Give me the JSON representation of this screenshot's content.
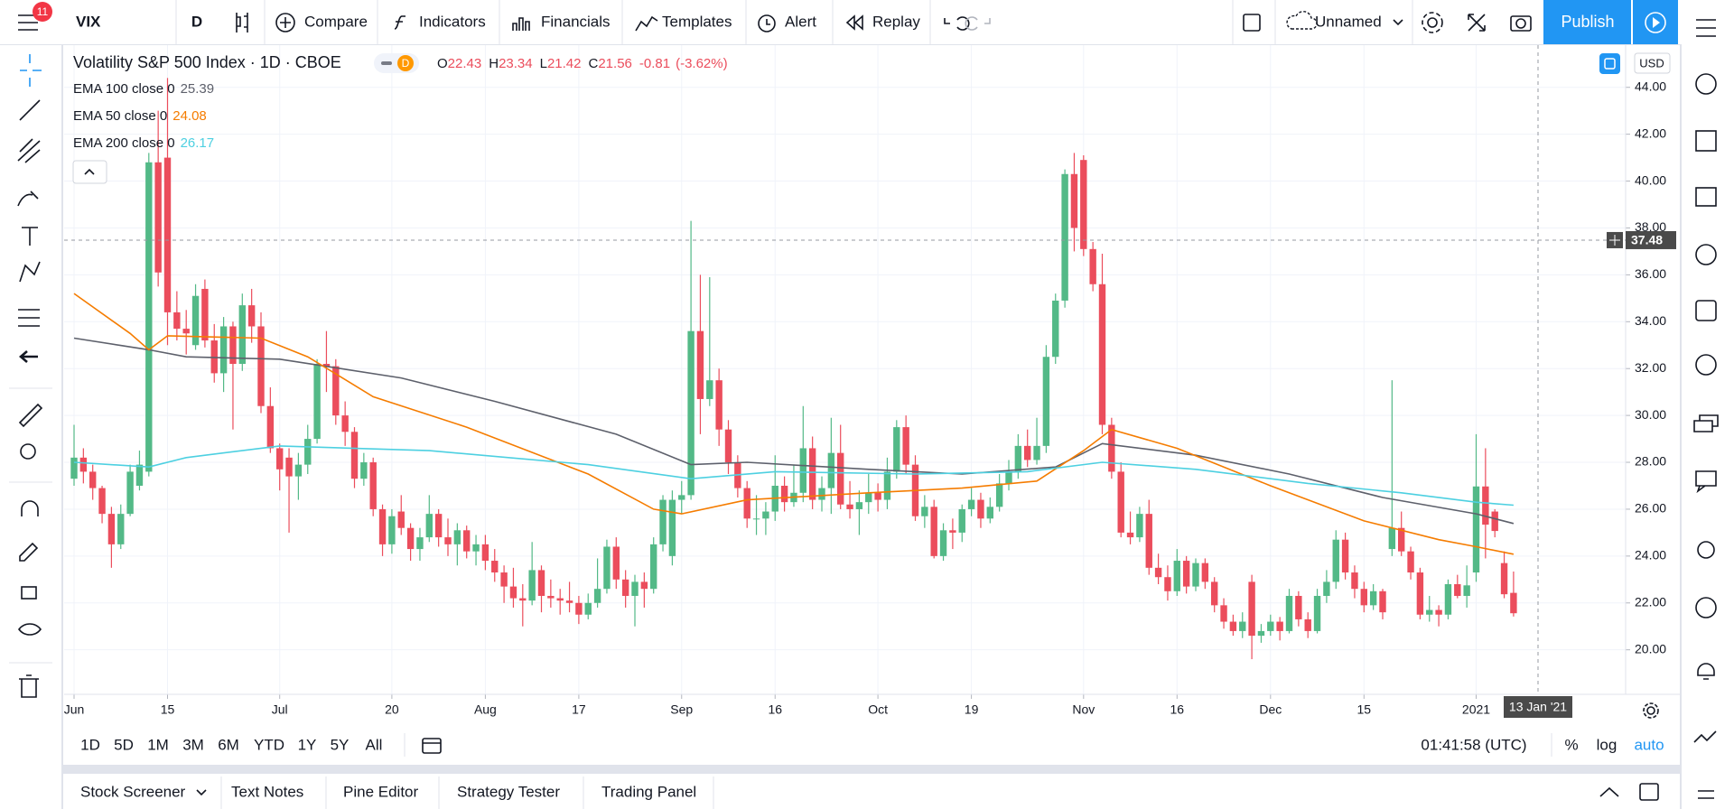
{
  "toolbar": {
    "badge": 11,
    "symbol": "VIX",
    "interval": "D",
    "items": [
      "Compare",
      "Indicators",
      "Financials",
      "Templates",
      "Alert",
      "Replay"
    ],
    "layout_name": "Unnamed",
    "publish": "Publish"
  },
  "legend": {
    "title": "Volatility S&P 500 Index · 1D · CBOE",
    "badge": "D",
    "ohlc": [
      {
        "key": "O",
        "value": 22.43
      },
      {
        "key": "H",
        "value": 23.34
      },
      {
        "key": "L",
        "value": 21.42
      },
      {
        "key": "C",
        "value": 21.56
      }
    ],
    "change": -0.81,
    "change_pct": {
      "value": -3.62,
      "label": "(-3.62%)"
    }
  },
  "chart_data": {
    "type": "candlestick",
    "up_color": "#53b987",
    "down_color": "#eb4d5c",
    "grid": true,
    "candles": [
      [
        27.3,
        29.6,
        27.0,
        28.2
      ],
      [
        28.2,
        28.6,
        27.1,
        27.6
      ],
      [
        27.6,
        27.9,
        26.4,
        26.9
      ],
      [
        26.9,
        27.0,
        25.4,
        25.8
      ],
      [
        25.8,
        26.1,
        23.5,
        24.5
      ],
      [
        24.5,
        26.2,
        24.3,
        25.8
      ],
      [
        25.8,
        27.9,
        25.7,
        27.6
      ],
      [
        27.0,
        28.5,
        26.8,
        27.9
      ],
      [
        27.6,
        41.2,
        27.4,
        40.8
      ],
      [
        40.8,
        43.0,
        35.5,
        36.1
      ],
      [
        41.0,
        44.4,
        33.0,
        34.4
      ],
      [
        34.4,
        35.3,
        33.2,
        33.7
      ],
      [
        33.7,
        34.5,
        32.6,
        33.5
      ],
      [
        33.0,
        35.6,
        32.8,
        35.1
      ],
      [
        35.4,
        35.8,
        32.9,
        33.2
      ],
      [
        33.2,
        33.9,
        31.4,
        31.8
      ],
      [
        31.8,
        34.2,
        31.0,
        33.8
      ],
      [
        33.8,
        34.0,
        29.4,
        32.2
      ],
      [
        32.2,
        35.2,
        31.9,
        34.7
      ],
      [
        34.7,
        35.4,
        33.1,
        33.8
      ],
      [
        33.8,
        34.4,
        30.1,
        30.4
      ],
      [
        30.4,
        31.2,
        28.4,
        28.6
      ],
      [
        28.6,
        28.8,
        26.8,
        27.7
      ],
      [
        28.2,
        28.6,
        25.0,
        27.4
      ],
      [
        27.4,
        28.4,
        26.4,
        27.9
      ],
      [
        27.9,
        29.6,
        27.5,
        29.0
      ],
      [
        29.0,
        32.4,
        28.8,
        32.2
      ],
      [
        32.2,
        33.6,
        31.0,
        32.1
      ],
      [
        32.1,
        32.4,
        29.6,
        30.0
      ],
      [
        30.0,
        30.6,
        28.7,
        29.3
      ],
      [
        29.3,
        29.5,
        26.9,
        27.3
      ],
      [
        27.3,
        28.4,
        27.0,
        28.0
      ],
      [
        28.0,
        28.2,
        25.7,
        26.0
      ],
      [
        26.0,
        26.2,
        24.0,
        24.5
      ],
      [
        24.5,
        26.0,
        24.1,
        25.7
      ],
      [
        25.9,
        26.6,
        24.9,
        25.2
      ],
      [
        25.2,
        25.4,
        23.8,
        24.3
      ],
      [
        24.3,
        25.2,
        23.8,
        24.8
      ],
      [
        24.8,
        26.6,
        24.6,
        25.8
      ],
      [
        25.8,
        26.0,
        24.4,
        24.8
      ],
      [
        24.8,
        25.6,
        24.0,
        24.5
      ],
      [
        24.5,
        25.4,
        23.6,
        25.1
      ],
      [
        25.1,
        25.3,
        23.9,
        24.2
      ],
      [
        24.2,
        24.9,
        23.6,
        24.5
      ],
      [
        24.5,
        24.9,
        23.4,
        23.8
      ],
      [
        23.8,
        24.3,
        22.9,
        23.3
      ],
      [
        23.3,
        23.6,
        22.0,
        22.7
      ],
      [
        22.7,
        23.5,
        21.8,
        22.2
      ],
      [
        22.2,
        22.8,
        21.0,
        22.1
      ],
      [
        22.1,
        24.6,
        21.9,
        23.4
      ],
      [
        23.4,
        23.6,
        21.6,
        22.3
      ],
      [
        22.3,
        23.0,
        21.8,
        22.2
      ],
      [
        22.2,
        22.6,
        21.5,
        22.1
      ],
      [
        22.1,
        22.9,
        21.6,
        22.0
      ],
      [
        22.0,
        22.3,
        21.1,
        21.5
      ],
      [
        21.5,
        22.4,
        21.3,
        22.0
      ],
      [
        22.0,
        23.9,
        21.8,
        22.6
      ],
      [
        22.6,
        24.7,
        22.4,
        24.4
      ],
      [
        24.4,
        24.8,
        22.6,
        23.0
      ],
      [
        23.0,
        23.4,
        21.8,
        22.3
      ],
      [
        22.3,
        23.2,
        21.0,
        22.9
      ],
      [
        22.9,
        23.3,
        21.8,
        22.6
      ],
      [
        22.6,
        24.8,
        22.4,
        24.5
      ],
      [
        24.5,
        26.6,
        24.2,
        26.4
      ],
      [
        24.0,
        26.8,
        23.6,
        26.4
      ],
      [
        26.4,
        27.2,
        25.8,
        26.6
      ],
      [
        26.6,
        38.3,
        26.4,
        33.6
      ],
      [
        33.6,
        36.0,
        29.2,
        30.7
      ],
      [
        30.7,
        35.9,
        30.4,
        31.5
      ],
      [
        31.5,
        32.0,
        28.7,
        29.4
      ],
      [
        29.4,
        29.8,
        27.5,
        28.0
      ],
      [
        28.0,
        28.3,
        26.5,
        26.9
      ],
      [
        26.9,
        27.2,
        25.2,
        25.6
      ],
      [
        25.6,
        26.6,
        24.9,
        25.6
      ],
      [
        25.6,
        26.3,
        24.9,
        25.9
      ],
      [
        25.9,
        28.3,
        25.5,
        27.0
      ],
      [
        27.0,
        27.4,
        25.9,
        26.3
      ],
      [
        26.3,
        27.9,
        26.1,
        26.7
      ],
      [
        26.7,
        30.4,
        26.3,
        28.6
      ],
      [
        28.6,
        29.1,
        26.0,
        26.4
      ],
      [
        26.4,
        27.4,
        25.9,
        26.9
      ],
      [
        26.9,
        29.9,
        25.8,
        28.4
      ],
      [
        28.4,
        29.6,
        26.0,
        26.2
      ],
      [
        26.2,
        27.2,
        25.6,
        26.0
      ],
      [
        26.0,
        26.8,
        24.9,
        26.3
      ],
      [
        26.3,
        27.5,
        25.8,
        26.7
      ],
      [
        26.7,
        27.1,
        25.9,
        26.4
      ],
      [
        26.4,
        28.2,
        26.0,
        27.6
      ],
      [
        27.6,
        29.8,
        27.3,
        29.5
      ],
      [
        29.5,
        30.0,
        27.5,
        27.9
      ],
      [
        27.9,
        28.3,
        25.5,
        25.7
      ],
      [
        25.7,
        26.6,
        25.2,
        26.1
      ],
      [
        26.1,
        26.4,
        23.9,
        24.0
      ],
      [
        24.0,
        25.4,
        23.8,
        25.1
      ],
      [
        25.1,
        25.6,
        24.3,
        25.0
      ],
      [
        25.0,
        26.2,
        24.6,
        26.0
      ],
      [
        26.0,
        26.9,
        25.7,
        26.4
      ],
      [
        26.4,
        26.7,
        25.2,
        25.6
      ],
      [
        25.6,
        26.5,
        25.4,
        26.1
      ],
      [
        26.1,
        27.5,
        25.9,
        27.1
      ],
      [
        27.1,
        28.1,
        26.8,
        27.6
      ],
      [
        27.6,
        29.2,
        27.3,
        28.7
      ],
      [
        28.7,
        29.4,
        27.8,
        28.1
      ],
      [
        28.1,
        29.9,
        27.9,
        28.7
      ],
      [
        28.7,
        33.0,
        28.4,
        32.5
      ],
      [
        32.5,
        35.2,
        32.2,
        34.9
      ],
      [
        34.9,
        40.5,
        34.6,
        40.3
      ],
      [
        40.3,
        41.2,
        37.0,
        38.0
      ],
      [
        40.9,
        41.1,
        36.8,
        37.1
      ],
      [
        37.1,
        37.4,
        35.3,
        35.6
      ],
      [
        35.6,
        36.9,
        29.2,
        29.6
      ],
      [
        29.6,
        29.9,
        27.3,
        27.6
      ],
      [
        27.6,
        28.0,
        24.8,
        25.0
      ],
      [
        25.0,
        25.9,
        24.5,
        24.8
      ],
      [
        24.8,
        26.1,
        24.6,
        25.8
      ],
      [
        25.8,
        26.4,
        23.2,
        23.5
      ],
      [
        23.5,
        24.1,
        22.8,
        23.1
      ],
      [
        23.1,
        23.6,
        22.1,
        22.5
      ],
      [
        22.5,
        24.3,
        22.3,
        23.8
      ],
      [
        23.8,
        24.0,
        22.4,
        22.7
      ],
      [
        22.7,
        23.9,
        22.5,
        23.7
      ],
      [
        23.7,
        23.9,
        22.6,
        22.9
      ],
      [
        22.9,
        23.1,
        21.6,
        21.9
      ],
      [
        21.9,
        22.2,
        20.9,
        21.2
      ],
      [
        21.2,
        21.5,
        20.6,
        20.8
      ],
      [
        20.8,
        21.6,
        20.5,
        21.2
      ],
      [
        22.9,
        23.2,
        19.6,
        20.6
      ],
      [
        20.6,
        21.1,
        20.3,
        20.8
      ],
      [
        20.8,
        21.5,
        20.6,
        21.2
      ],
      [
        21.2,
        21.4,
        20.4,
        20.8
      ],
      [
        20.8,
        22.6,
        20.7,
        22.3
      ],
      [
        22.3,
        22.5,
        21.0,
        21.3
      ],
      [
        21.3,
        21.6,
        20.5,
        20.8
      ],
      [
        20.8,
        22.6,
        20.7,
        22.3
      ],
      [
        22.3,
        23.4,
        22.0,
        22.9
      ],
      [
        22.9,
        25.1,
        22.6,
        24.7
      ],
      [
        24.7,
        25.0,
        23.0,
        23.3
      ],
      [
        23.3,
        23.6,
        22.2,
        22.6
      ],
      [
        22.6,
        22.9,
        21.6,
        21.9
      ],
      [
        21.9,
        22.8,
        21.7,
        22.5
      ],
      [
        22.5,
        22.6,
        21.3,
        21.6
      ],
      [
        24.3,
        31.5,
        24.0,
        25.2
      ],
      [
        25.2,
        25.9,
        24.0,
        24.2
      ],
      [
        24.2,
        24.4,
        23.0,
        23.3
      ],
      [
        23.3,
        23.5,
        21.3,
        21.5
      ],
      [
        21.5,
        22.3,
        21.2,
        21.7
      ],
      [
        21.7,
        21.9,
        21.0,
        21.5
      ],
      [
        21.5,
        23.0,
        21.3,
        22.8
      ],
      [
        22.8,
        23.2,
        22.2,
        22.3
      ],
      [
        22.3,
        23.6,
        21.8,
        22.75
      ],
      [
        23.3,
        29.2,
        22.9,
        26.97
      ],
      [
        26.97,
        28.6,
        23.9,
        25.34
      ],
      [
        25.9,
        26.0,
        24.8,
        25.07
      ],
      [
        23.7,
        24.2,
        22.2,
        22.37
      ],
      [
        22.43,
        23.34,
        21.42,
        21.56
      ]
    ],
    "series": [
      {
        "name": "EMA 100 close 0",
        "color": "#5d606b",
        "x": [
          0,
          8,
          12,
          22,
          35,
          45,
          58,
          66,
          72,
          85,
          95,
          105,
          110,
          120,
          130,
          140,
          150,
          154
        ],
        "values": [
          33.3,
          32.8,
          32.5,
          32.4,
          31.6,
          30.6,
          29.2,
          27.9,
          28.0,
          27.7,
          27.5,
          27.8,
          28.8,
          28.3,
          27.5,
          26.5,
          25.8,
          25.39
        ]
      },
      {
        "name": "EMA 50 close 0",
        "color": "#f57c00",
        "x": [
          0,
          6,
          8,
          10,
          20,
          25,
          32,
          42,
          55,
          62,
          65,
          72,
          85,
          95,
          103,
          108,
          111,
          118,
          128,
          138,
          146,
          150,
          154
        ],
        "values": [
          35.2,
          33.5,
          32.8,
          33.4,
          33.3,
          32.5,
          30.8,
          29.5,
          27.5,
          26.0,
          25.8,
          26.4,
          26.7,
          26.9,
          27.2,
          28.5,
          29.4,
          28.6,
          27.0,
          25.5,
          24.7,
          24.4,
          24.08
        ]
      },
      {
        "name": "EMA 200 close 0",
        "color": "#4dd0e1",
        "x": [
          0,
          8,
          12,
          22,
          38,
          55,
          66,
          75,
          90,
          102,
          110,
          120,
          132,
          142,
          150,
          154
        ],
        "values": [
          28.0,
          27.8,
          28.2,
          28.7,
          28.5,
          27.9,
          27.3,
          27.6,
          27.5,
          27.6,
          28.0,
          27.7,
          27.1,
          26.7,
          26.3,
          26.17
        ]
      }
    ],
    "ylim": [
      18.1,
      45.8
    ],
    "yticks": [
      {
        "value": 20,
        "label": "20.00"
      },
      {
        "value": 22,
        "label": "22.00"
      },
      {
        "value": 24,
        "label": "24.00"
      },
      {
        "value": 26,
        "label": "26.00"
      },
      {
        "value": 28,
        "label": "28.00"
      },
      {
        "value": 30,
        "label": "30.00"
      },
      {
        "value": 32,
        "label": "32.00"
      },
      {
        "value": 34,
        "label": "34.00"
      },
      {
        "value": 36,
        "label": "36.00"
      },
      {
        "value": 38,
        "label": "38.00"
      },
      {
        "value": 40,
        "label": "40.00"
      },
      {
        "value": 42,
        "label": "42.00"
      },
      {
        "value": 44,
        "label": "44.00"
      }
    ],
    "xticks": [
      {
        "value": 0,
        "label": "Jun"
      },
      {
        "value": 10,
        "label": "15"
      },
      {
        "value": 22,
        "label": "Jul"
      },
      {
        "value": 34,
        "label": "20"
      },
      {
        "value": 44,
        "label": "Aug"
      },
      {
        "value": 54,
        "label": "17"
      },
      {
        "value": 65,
        "label": "Sep"
      },
      {
        "value": 75,
        "label": "16"
      },
      {
        "value": 86,
        "label": "Oct"
      },
      {
        "value": 96,
        "label": "19"
      },
      {
        "value": 108,
        "label": "Nov"
      },
      {
        "value": 118,
        "label": "16"
      },
      {
        "value": 128,
        "label": "Dec"
      },
      {
        "value": 138,
        "label": "15"
      },
      {
        "value": 150,
        "label": "2021"
      }
    ],
    "currency": "USD",
    "crosshair": {
      "price": 37.48,
      "date": "13 Jan '21"
    }
  },
  "range_bar": {
    "ranges": [
      "1D",
      "5D",
      "1M",
      "3M",
      "6M",
      "YTD",
      "1Y",
      "5Y",
      "All"
    ],
    "clock": "01:41:58 (UTC)",
    "scale_options": [
      "%",
      "log",
      "auto"
    ]
  },
  "bottom_tabs": [
    "Stock Screener",
    "Text Notes",
    "Pine Editor",
    "Strategy Tester",
    "Trading Panel"
  ]
}
